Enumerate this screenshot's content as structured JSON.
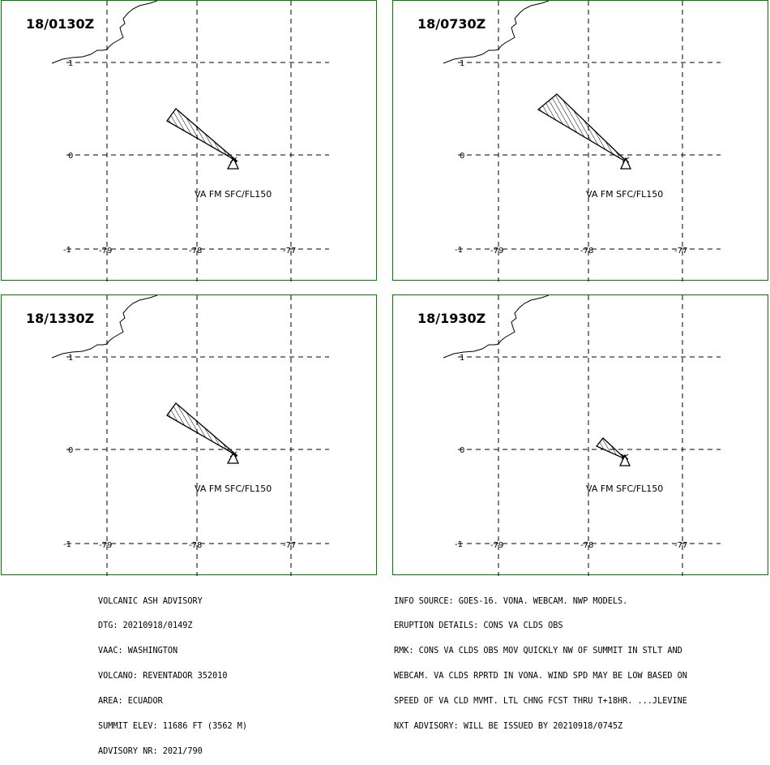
{
  "panels": [
    {
      "time_label": "18/0130Z",
      "va_label": "VA FM SFC/FL150",
      "plume": "long"
    },
    {
      "time_label": "18/0730Z",
      "va_label": "VA FM SFC/FL150",
      "plume": "wide"
    },
    {
      "time_label": "18/1330Z",
      "va_label": "VA FM SFC/FL150",
      "plume": "long"
    },
    {
      "time_label": "18/1930Z",
      "va_label": "VA FM SFC/FL150",
      "plume": "short"
    }
  ],
  "axes": {
    "lat_labels": [
      "1",
      "0",
      "-1"
    ],
    "lon_labels": [
      "-79",
      "-78",
      "-77"
    ]
  },
  "colors": {
    "frame": "#008000",
    "lines": "#000000",
    "background": "#ffffff"
  },
  "advisory_left": [
    "VOLCANIC ASH ADVISORY",
    "DTG: 20210918/0149Z",
    "VAAC: WASHINGTON",
    "VOLCANO: REVENTADOR 352010",
    "AREA: ECUADOR",
    "SUMMIT ELEV: 11686 FT (3562 M)",
    "ADVISORY NR: 2021/790"
  ],
  "advisory_right": [
    "INFO SOURCE: GOES-16. VONA. WEBCAM. NWP MODELS.",
    "ERUPTION DETAILS: CONS VA CLDS OBS",
    "RMK: CONS VA CLDS OBS MOV QUICKLY NW OF SUMMIT IN STLT AND",
    "WEBCAM. VA CLDS RPRTD IN VONA. WIND SPD MAY BE LOW BASED ON",
    "SPEED OF VA CLD MVMT. LTL CHNG FCST THRU T+18HR. ...JLEVINE",
    "NXT ADVISORY: WILL BE ISSUED BY 20210918/0745Z"
  ]
}
